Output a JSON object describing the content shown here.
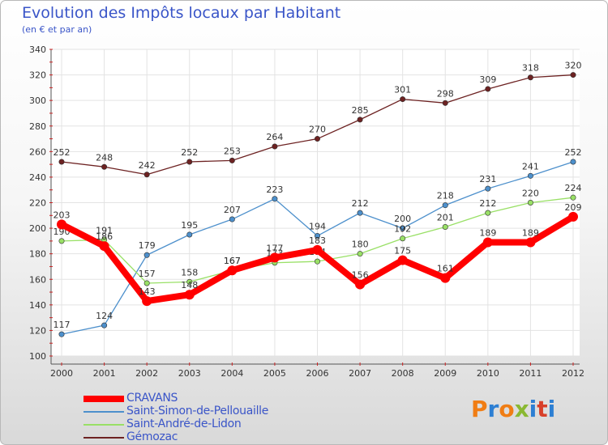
{
  "title": "Evolution des Impôts locaux par Habitant",
  "subtitle": "(en € et par an)",
  "logo": {
    "text": "Proxiti",
    "colors": [
      "#f07d14",
      "#2d7fd3",
      "#f07d14",
      "#8ab832",
      "#2d7fd3",
      "#d8402a",
      "#2d7fd3"
    ]
  },
  "chart_data": {
    "type": "line",
    "title": "Evolution des Impôts locaux par Habitant",
    "subtitle": "(en € et par an)",
    "xlabel": "",
    "ylabel": "",
    "ylim": [
      100,
      340
    ],
    "yticks": [
      100,
      120,
      140,
      160,
      180,
      200,
      220,
      240,
      260,
      280,
      300,
      320,
      340
    ],
    "categories": [
      "2000",
      "2001",
      "2002",
      "2003",
      "2004",
      "2005",
      "2006",
      "2007",
      "2008",
      "2009",
      "2010",
      "2011",
      "2012"
    ],
    "series": [
      {
        "name": "CRAVANS",
        "color": "#ff0000",
        "values": [
          203,
          186,
          143,
          148,
          167,
          177,
          183,
          156,
          175,
          161,
          189,
          189,
          209
        ]
      },
      {
        "name": "Saint-Simon-de-Pellouaille",
        "color": "#4d90cc",
        "values": [
          117,
          124,
          179,
          195,
          207,
          223,
          194,
          212,
          200,
          218,
          231,
          241,
          252
        ]
      },
      {
        "name": "Saint-André-de-Lidon",
        "color": "#99e066",
        "values": [
          190,
          191,
          157,
          158,
          167,
          173,
          174,
          180,
          192,
          201,
          212,
          220,
          224
        ]
      },
      {
        "name": "Gémozac",
        "color": "#6d2222",
        "values": [
          252,
          248,
          242,
          252,
          253,
          264,
          270,
          285,
          301,
          298,
          309,
          318,
          320
        ]
      }
    ],
    "grid": true,
    "legend": "bottom-left"
  }
}
